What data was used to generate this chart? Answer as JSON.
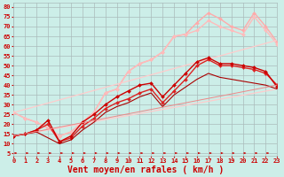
{
  "background_color": "#cceee8",
  "grid_color": "#aabbbb",
  "xlabel": "Vent moyen/en rafales ( km/h )",
  "xlabel_color": "#cc0000",
  "xlabel_fontsize": 7,
  "xtick_labels": [
    "0",
    "1",
    "2",
    "3",
    "4",
    "5",
    "6",
    "7",
    "8",
    "9",
    "10",
    "11",
    "12",
    "13",
    "14",
    "15",
    "16",
    "17",
    "18",
    "19",
    "20",
    "21",
    "22",
    "23"
  ],
  "ytick_values": [
    5,
    10,
    15,
    20,
    25,
    30,
    35,
    40,
    45,
    50,
    55,
    60,
    65,
    70,
    75,
    80
  ],
  "ytick_labels": [
    "5",
    "10",
    "15",
    "20",
    "25",
    "30",
    "35",
    "40",
    "45",
    "50",
    "55",
    "60",
    "65",
    "70",
    "75",
    "80"
  ],
  "xlim": [
    0,
    23
  ],
  "ylim": [
    4,
    82
  ],
  "tick_color": "#cc0000",
  "tick_fontsize": 5,
  "lines": [
    {
      "x": [
        0,
        1,
        2,
        3,
        4,
        5,
        6,
        7,
        8,
        9,
        10,
        11,
        12,
        13,
        14,
        15,
        16,
        17,
        18,
        19,
        20,
        21,
        22,
        23
      ],
      "y": [
        26,
        23,
        21,
        18,
        14,
        16,
        21,
        26,
        36,
        38,
        47,
        51,
        53,
        57,
        65,
        66,
        72,
        77,
        74,
        70,
        68,
        77,
        70,
        62
      ],
      "color": "#ffaaaa",
      "linewidth": 1.0,
      "marker": "D",
      "markersize": 2
    },
    {
      "x": [
        0,
        1,
        2,
        3,
        4,
        5,
        6,
        7,
        8,
        9,
        10,
        11,
        12,
        13,
        14,
        15,
        16,
        17,
        18,
        19,
        20,
        21,
        22,
        23
      ],
      "y": [
        26,
        23,
        21,
        18,
        14,
        16,
        21,
        26,
        36,
        38,
        47,
        51,
        53,
        57,
        65,
        66,
        68,
        73,
        70,
        68,
        66,
        75,
        68,
        61
      ],
      "color": "#ffbbbb",
      "linewidth": 1.0,
      "marker": "D",
      "markersize": 2
    },
    {
      "x": [
        0,
        23
      ],
      "y": [
        26,
        63
      ],
      "color": "#ffcccc",
      "linewidth": 0.9,
      "marker": "None",
      "markersize": 0
    },
    {
      "x": [
        0,
        23
      ],
      "y": [
        14,
        38
      ],
      "color": "#ffcccc",
      "linewidth": 0.9,
      "marker": "None",
      "markersize": 0
    },
    {
      "x": [
        0,
        1,
        2,
        3,
        4,
        5,
        6,
        7,
        8,
        9,
        10,
        11,
        12,
        13,
        14,
        15,
        16,
        17,
        18,
        19,
        20,
        21,
        22,
        23
      ],
      "y": [
        14,
        15,
        17,
        20,
        11,
        13,
        19,
        23,
        28,
        31,
        33,
        36,
        38,
        31,
        37,
        43,
        50,
        53,
        50,
        50,
        49,
        48,
        46,
        40
      ],
      "color": "#dd2222",
      "linewidth": 1.0,
      "marker": "D",
      "markersize": 2
    },
    {
      "x": [
        0,
        1,
        2,
        3,
        4,
        5,
        6,
        7,
        8,
        9,
        10,
        11,
        12,
        13,
        14,
        15,
        16,
        17,
        18,
        19,
        20,
        21,
        22,
        23
      ],
      "y": [
        14,
        15,
        17,
        22,
        11,
        14,
        21,
        25,
        30,
        34,
        37,
        40,
        41,
        34,
        40,
        46,
        52,
        54,
        51,
        51,
        50,
        49,
        47,
        39
      ],
      "color": "#cc0000",
      "linewidth": 1.0,
      "marker": "D",
      "markersize": 2
    },
    {
      "x": [
        0,
        1,
        2,
        3,
        4,
        5,
        6,
        7,
        8,
        9,
        10,
        11,
        12,
        13,
        14,
        15,
        16,
        17,
        18,
        19,
        20,
        21,
        22,
        23
      ],
      "y": [
        14,
        15,
        16,
        13,
        10,
        12,
        17,
        21,
        26,
        29,
        31,
        34,
        36,
        29,
        35,
        39,
        43,
        46,
        44,
        43,
        42,
        41,
        40,
        38
      ],
      "color": "#aa0000",
      "linewidth": 0.8,
      "marker": "None",
      "markersize": 0
    },
    {
      "x": [
        0,
        23
      ],
      "y": [
        14,
        40
      ],
      "color": "#ee8888",
      "linewidth": 0.7,
      "marker": "None",
      "markersize": 0
    }
  ]
}
